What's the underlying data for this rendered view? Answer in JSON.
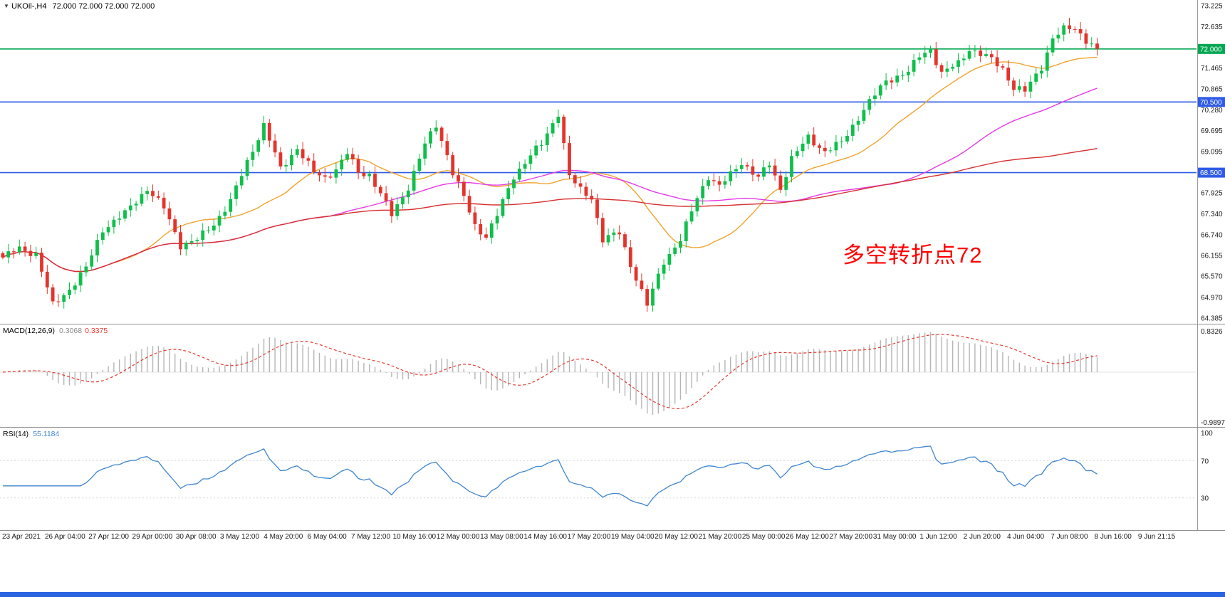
{
  "window": {
    "background": "#ffffff",
    "taskbar_color": "#2a64e0"
  },
  "chart_data": {
    "type": "candlestick",
    "symbol_title": {
      "symbol": "UKOil-,H4",
      "ohlc_text": "72.000 72.000 72.000 72.000"
    },
    "timeframe": "H4",
    "price_panel": {
      "bar_count": 198,
      "last_close": 72.0,
      "up_color": "#0fbf4b",
      "down_color": "#e3342c",
      "y_axis": {
        "min": 64.385,
        "max": 73.225,
        "ticks": [
          "73.225",
          "72.635",
          "71.465",
          "70.865",
          "70.280",
          "69.695",
          "69.095",
          "67.925",
          "67.340",
          "66.740",
          "66.155",
          "65.570",
          "64.970",
          "64.385"
        ]
      },
      "close_anchors": [
        [
          0,
          66.1
        ],
        [
          3,
          66.35
        ],
        [
          6,
          66.2
        ],
        [
          9,
          64.75
        ],
        [
          12,
          65.2
        ],
        [
          15,
          65.8
        ],
        [
          18,
          66.9
        ],
        [
          22,
          67.35
        ],
        [
          26,
          68.05
        ],
        [
          29,
          67.5
        ],
        [
          32,
          66.45
        ],
        [
          35,
          66.6
        ],
        [
          38,
          67.05
        ],
        [
          41,
          67.7
        ],
        [
          44,
          68.8
        ],
        [
          47,
          69.85
        ],
        [
          50,
          68.6
        ],
        [
          53,
          69.2
        ],
        [
          56,
          68.5
        ],
        [
          58,
          68.35
        ],
        [
          60,
          68.6
        ],
        [
          62,
          69.05
        ],
        [
          64,
          68.5
        ],
        [
          66,
          68.45
        ],
        [
          68,
          67.9
        ],
        [
          70,
          67.3
        ],
        [
          73,
          68.1
        ],
        [
          76,
          69.3
        ],
        [
          78,
          69.85
        ],
        [
          80,
          69.0
        ],
        [
          81,
          68.5
        ],
        [
          83,
          67.8
        ],
        [
          85,
          67.0
        ],
        [
          87,
          66.7
        ],
        [
          89,
          67.3
        ],
        [
          92,
          68.4
        ],
        [
          95,
          69.0
        ],
        [
          97,
          69.3
        ],
        [
          100,
          70.2
        ],
        [
          102,
          68.4
        ],
        [
          104,
          68.0
        ],
        [
          106,
          67.8
        ],
        [
          108,
          66.6
        ],
        [
          111,
          66.8
        ],
        [
          113,
          65.9
        ],
        [
          116,
          64.75
        ],
        [
          119,
          66.0
        ],
        [
          122,
          66.6
        ],
        [
          125,
          67.8
        ],
        [
          127,
          68.4
        ],
        [
          129,
          68.1
        ],
        [
          133,
          68.8
        ],
        [
          136,
          68.35
        ],
        [
          138,
          68.75
        ],
        [
          140,
          68.05
        ],
        [
          142,
          68.9
        ],
        [
          145,
          69.5
        ],
        [
          148,
          69.1
        ],
        [
          151,
          69.35
        ],
        [
          155,
          70.3
        ],
        [
          159,
          71.1
        ],
        [
          163,
          71.35
        ],
        [
          165,
          71.8
        ],
        [
          167,
          72.0
        ],
        [
          169,
          71.3
        ],
        [
          172,
          71.6
        ],
        [
          174,
          72.0
        ],
        [
          178,
          71.7
        ],
        [
          180,
          71.45
        ],
        [
          182,
          70.9
        ],
        [
          184,
          70.8
        ],
        [
          187,
          71.5
        ],
        [
          189,
          72.3
        ],
        [
          191,
          72.55
        ],
        [
          193,
          72.6
        ],
        [
          195,
          72.25
        ],
        [
          197,
          72.0
        ]
      ],
      "moving_averages": [
        {
          "name": "fast",
          "period": 20,
          "color": "#f0a32e"
        },
        {
          "name": "medium",
          "period": 60,
          "color": "#e43ae4"
        },
        {
          "name": "slow",
          "period": 140,
          "color": "#d63031"
        }
      ],
      "horizontal_lines": [
        {
          "price": 72.0,
          "label": "72.000",
          "color": "#00a651"
        },
        {
          "price": 70.5,
          "label": "70.500",
          "color": "#2f5be7"
        },
        {
          "price": 68.5,
          "label": "68.500",
          "color": "#2f5be7"
        }
      ]
    },
    "macd_panel": {
      "label": "MACD(12,26,9)",
      "main_value": "0.3068",
      "signal_value": "0.3375",
      "fast": 12,
      "slow": 26,
      "signal": 9,
      "scale_max": 0.8326,
      "scale_min": -0.9897,
      "axis_labels": [
        "0.8326",
        "-0.9897"
      ],
      "histogram_color": "#b5b5b5",
      "signal_color": "#e23a2e"
    },
    "rsi_panel": {
      "label": "RSI(14)",
      "value": "55.1184",
      "period": 14,
      "scale": [
        0,
        100
      ],
      "levels": [
        70,
        30
      ],
      "axis_labels": [
        "100",
        "70",
        "30"
      ],
      "line_color": "#3f86cf"
    },
    "x_axis": {
      "labels": [
        "23 Apr 2021",
        "26 Apr 04:00",
        "27 Apr 12:00",
        "29 Apr 00:00",
        "30 Apr 08:00",
        "3 May 12:00",
        "4 May 20:00",
        "6 May 04:00",
        "7 May 12:00",
        "10 May 16:00",
        "12 May 00:00",
        "13 May 08:00",
        "14 May 16:00",
        "17 May 20:00",
        "19 May 04:00",
        "20 May 12:00",
        "21 May 20:00",
        "25 May 00:00",
        "26 May 12:00",
        "27 May 20:00",
        "31 May 00:00",
        "1 Jun 12:00",
        "2 Jun 20:00",
        "4 Jun 04:00",
        "7 Jun 08:00",
        "8 Jun 16:00",
        "9 Jun 21:15"
      ]
    },
    "annotation": {
      "text": "多空转折点72",
      "color": "#ff0000"
    }
  }
}
